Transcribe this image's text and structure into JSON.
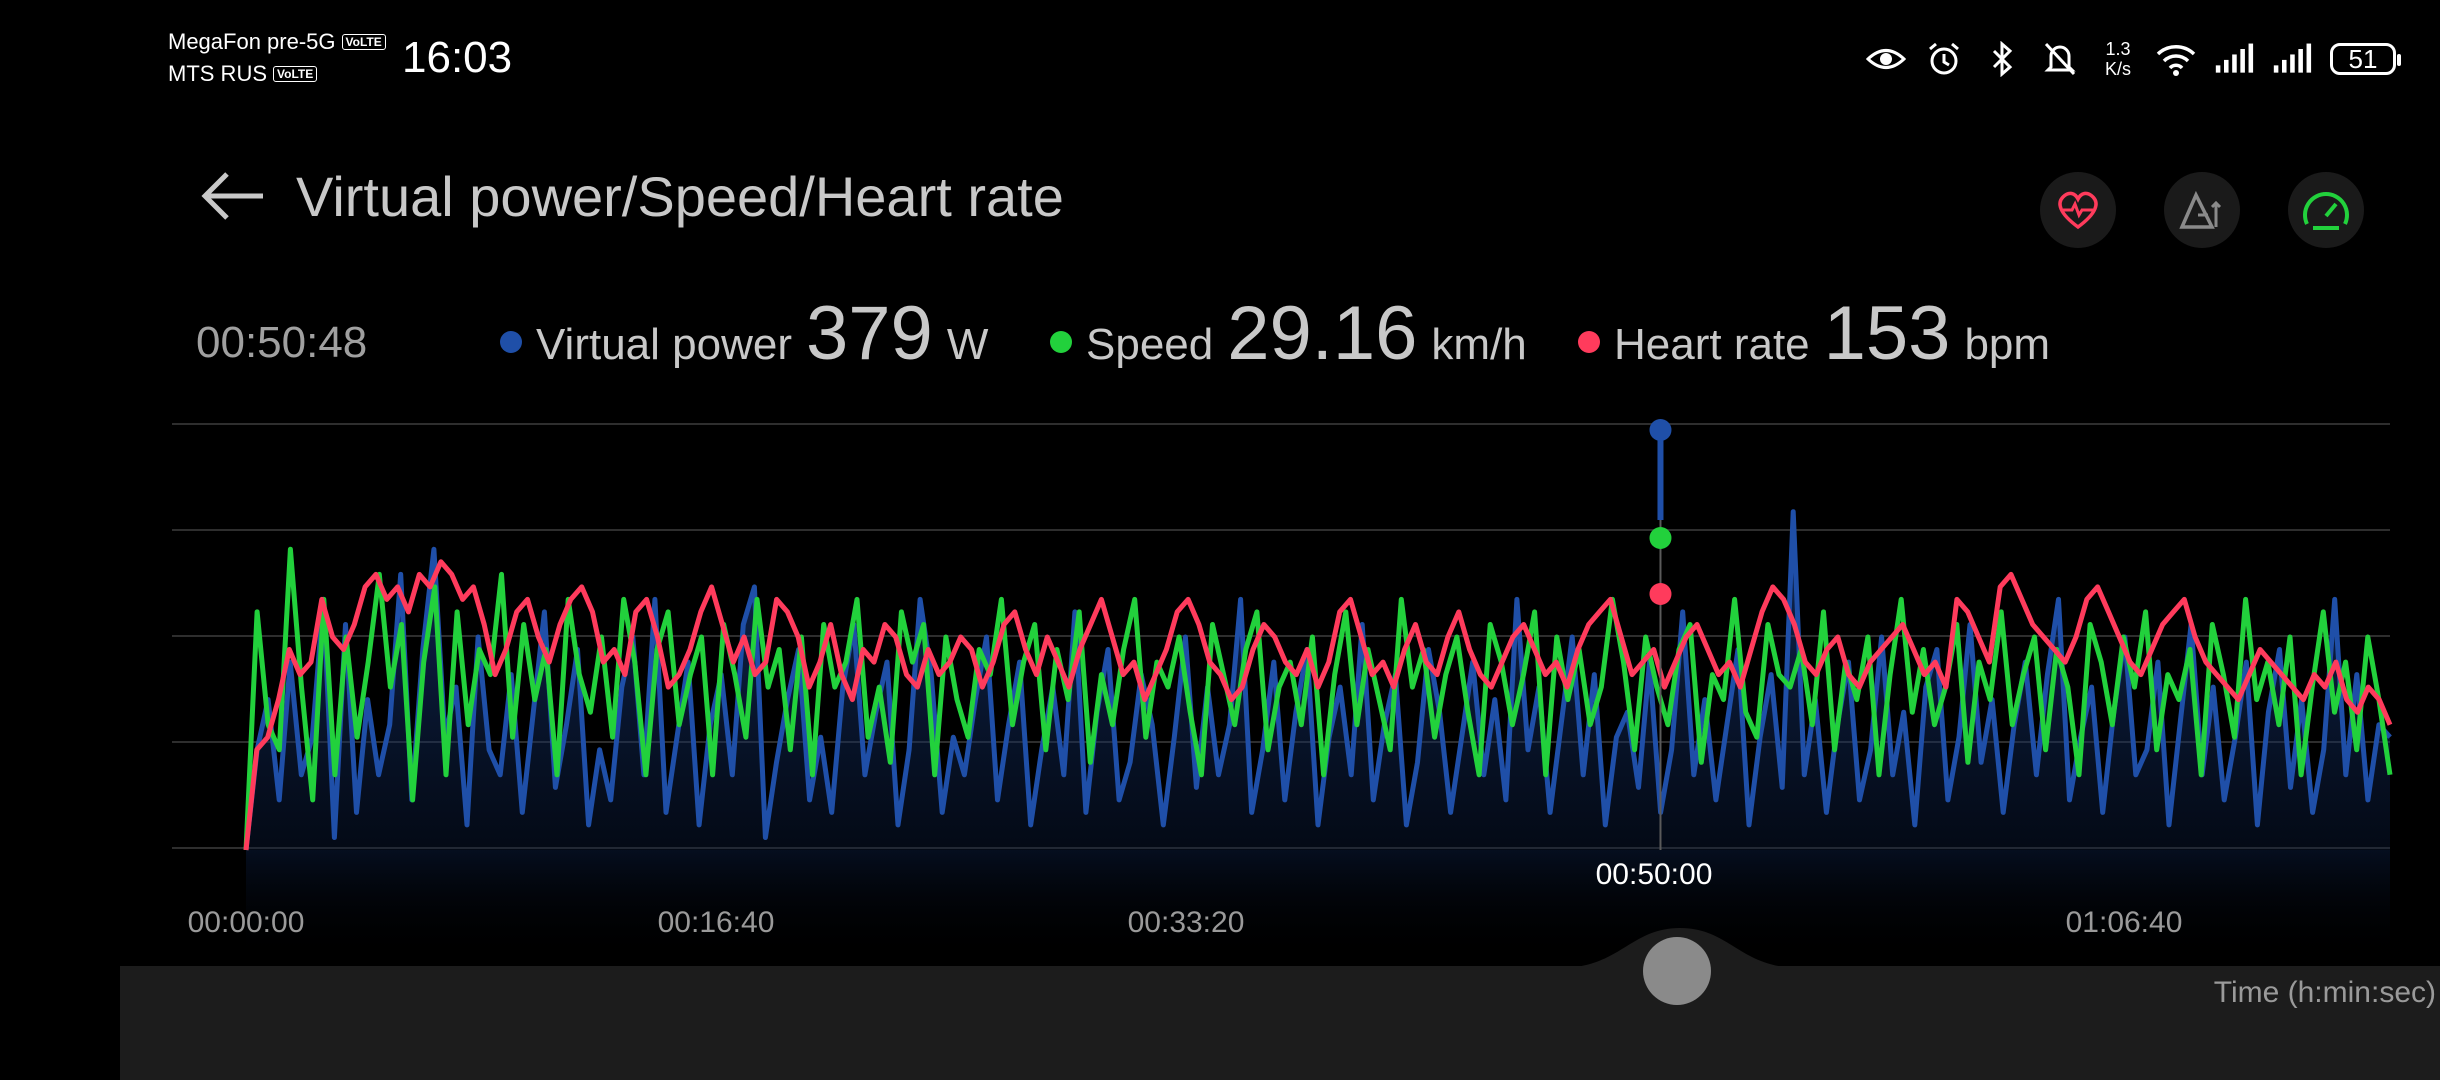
{
  "status_bar": {
    "carrier1": "MegaFon pre-5G",
    "carrier2": "MTS RUS",
    "volte": "VoLTE",
    "time": "16:03",
    "net_speed_value": "1.3",
    "net_speed_unit": "K/s",
    "battery": "51",
    "icons": [
      "eye-icon",
      "alarm-icon",
      "bluetooth-icon",
      "bell-off-icon",
      "wifi-icon",
      "signal-icon",
      "signal-icon",
      "battery-icon"
    ]
  },
  "header": {
    "title": "Virtual power/Speed/Heart rate",
    "buttons": [
      "heart-rate-icon",
      "elevation-icon",
      "speedometer-icon"
    ]
  },
  "readout": {
    "time": "00:50:48",
    "power": {
      "label": "Virtual power",
      "value": "379",
      "unit": "W",
      "color": "#1f4fa8"
    },
    "speed": {
      "label": "Speed",
      "value": "29.16",
      "unit": "km/h",
      "color": "#22d13c"
    },
    "heart": {
      "label": "Heart rate",
      "value": "153",
      "unit": "bpm",
      "color": "#ff3b5c"
    }
  },
  "axis": {
    "x_ticks": [
      "00:00:00",
      "00:16:40",
      "00:33:20",
      "00:50:00",
      "01:06:40"
    ],
    "x_label": "Time (h:min:sec)",
    "cursor_label": "00:50:00"
  },
  "chart_data": {
    "type": "line",
    "x_unit": "seconds",
    "x_range": [
      0,
      4620
    ],
    "cursor_x": 3048,
    "series": [
      {
        "name": "Virtual power",
        "color": "#1f4fa8",
        "fill": true,
        "values": [
          0,
          80,
          120,
          40,
          150,
          60,
          90,
          200,
          10,
          180,
          30,
          120,
          60,
          100,
          220,
          40,
          160,
          240,
          90,
          130,
          20,
          170,
          80,
          60,
          140,
          30,
          110,
          190,
          50,
          100,
          160,
          20,
          80,
          40,
          130,
          170,
          60,
          200,
          30,
          90,
          150,
          20,
          100,
          140,
          60,
          180,
          210,
          10,
          70,
          120,
          160,
          40,
          90,
          30,
          130,
          180,
          60,
          110,
          150,
          20,
          80,
          200,
          140,
          30,
          90,
          60,
          120,
          170,
          40,
          100,
          150,
          20,
          80,
          130,
          60,
          190,
          30,
          110,
          160,
          40,
          70,
          140,
          100,
          20,
          90,
          170,
          50,
          130,
          60,
          100,
          200,
          30,
          80,
          150,
          40,
          110,
          160,
          20,
          90,
          130,
          60,
          180,
          40,
          100,
          140,
          20,
          70,
          160,
          110,
          30,
          90,
          150,
          60,
          120,
          40,
          200,
          80,
          130,
          30,
          100,
          170,
          60,
          140,
          20,
          90,
          110,
          50,
          150,
          30,
          80,
          190,
          60,
          120,
          40,
          100,
          160,
          20,
          90,
          140,
          50,
          270,
          60,
          120,
          30,
          100,
          150,
          40,
          80,
          170,
          60,
          110,
          20,
          130,
          160,
          40,
          90,
          180,
          70,
          120,
          30,
          100,
          150,
          60,
          140,
          200,
          40,
          90,
          130,
          30,
          110,
          170,
          60,
          80,
          150,
          20,
          100,
          180,
          60,
          130,
          40,
          90,
          150,
          20,
          110,
          160,
          50,
          120,
          30,
          80,
          200,
          60,
          140,
          40,
          100,
          90
        ]
      },
      {
        "name": "Speed",
        "color": "#22d13c",
        "values": [
          0,
          190,
          100,
          80,
          240,
          130,
          40,
          200,
          60,
          170,
          90,
          150,
          220,
          130,
          180,
          40,
          150,
          210,
          60,
          190,
          100,
          160,
          140,
          220,
          90,
          180,
          120,
          160,
          60,
          200,
          140,
          110,
          170,
          90,
          200,
          150,
          60,
          160,
          190,
          100,
          140,
          170,
          60,
          180,
          140,
          90,
          200,
          130,
          160,
          80,
          170,
          60,
          180,
          130,
          150,
          200,
          90,
          130,
          70,
          190,
          150,
          180,
          60,
          170,
          120,
          90,
          160,
          140,
          200,
          100,
          150,
          180,
          80,
          160,
          120,
          190,
          70,
          140,
          100,
          160,
          200,
          90,
          150,
          130,
          170,
          110,
          60,
          180,
          140,
          100,
          160,
          190,
          80,
          130,
          150,
          100,
          170,
          60,
          140,
          190,
          100,
          160,
          120,
          80,
          200,
          130,
          160,
          90,
          140,
          170,
          110,
          60,
          180,
          150,
          100,
          140,
          190,
          60,
          170,
          120,
          160,
          100,
          130,
          200,
          150,
          80,
          170,
          130,
          100,
          160,
          180,
          70,
          140,
          120,
          200,
          110,
          90,
          180,
          140,
          130,
          160,
          100,
          190,
          80,
          150,
          120,
          170,
          60,
          140,
          200,
          110,
          160,
          100,
          130,
          180,
          70,
          150,
          120,
          190,
          100,
          140,
          170,
          80,
          160,
          130,
          60,
          180,
          150,
          100,
          170,
          130,
          190,
          80,
          140,
          120,
          160,
          60,
          180,
          140,
          90,
          200,
          120,
          150,
          100,
          170,
          60,
          130,
          190,
          110,
          150,
          80,
          170,
          120,
          60
        ]
      },
      {
        "name": "Heart rate",
        "color": "#ff3b5c",
        "values": [
          0,
          80,
          90,
          120,
          160,
          140,
          150,
          200,
          170,
          160,
          180,
          210,
          220,
          200,
          210,
          190,
          220,
          210,
          230,
          220,
          200,
          210,
          180,
          140,
          160,
          190,
          200,
          170,
          150,
          180,
          200,
          210,
          190,
          150,
          160,
          140,
          190,
          200,
          170,
          130,
          140,
          160,
          190,
          210,
          180,
          150,
          170,
          140,
          150,
          200,
          190,
          170,
          130,
          150,
          180,
          140,
          120,
          160,
          150,
          180,
          170,
          140,
          130,
          160,
          140,
          150,
          170,
          160,
          130,
          150,
          180,
          190,
          160,
          140,
          170,
          150,
          130,
          160,
          180,
          200,
          170,
          140,
          150,
          120,
          140,
          160,
          190,
          200,
          180,
          150,
          140,
          120,
          130,
          160,
          180,
          170,
          150,
          140,
          160,
          130,
          150,
          190,
          200,
          170,
          140,
          150,
          130,
          160,
          180,
          150,
          140,
          170,
          190,
          160,
          140,
          130,
          150,
          170,
          180,
          160,
          140,
          150,
          130,
          160,
          180,
          190,
          200,
          170,
          140,
          150,
          160,
          130,
          150,
          170,
          180,
          160,
          140,
          150,
          130,
          160,
          190,
          210,
          200,
          180,
          150,
          140,
          160,
          170,
          140,
          130,
          150,
          160,
          170,
          180,
          160,
          140,
          150,
          130,
          200,
          190,
          170,
          150,
          210,
          220,
          200,
          180,
          170,
          160,
          150,
          170,
          200,
          210,
          190,
          170,
          150,
          140,
          160,
          180,
          190,
          200,
          170,
          150,
          140,
          130,
          120,
          140,
          160,
          150,
          140,
          130,
          120,
          140,
          130,
          150,
          120,
          110,
          130,
          120,
          100
        ]
      }
    ]
  }
}
